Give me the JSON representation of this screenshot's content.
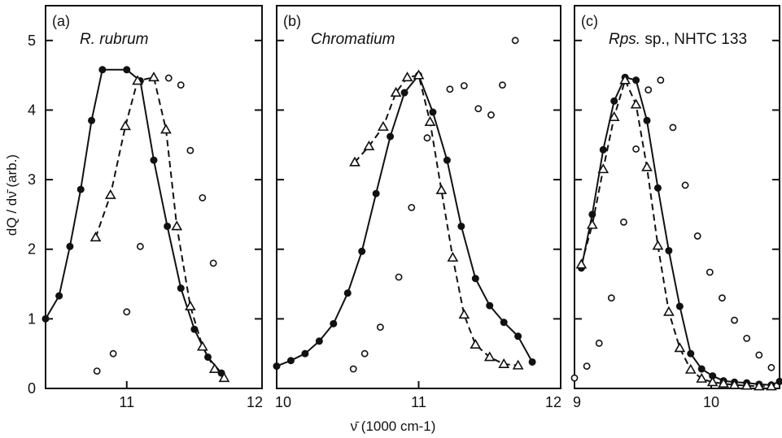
{
  "chart_data": {
    "type": "line",
    "ylabel": "dQ / dν̄  (arb.)",
    "xlabel": "ν̄ (1000 cm-1)",
    "ylim": [
      0,
      5.5
    ],
    "y_ticks": [
      "0",
      "1",
      "2",
      "3",
      "4",
      "5"
    ],
    "panels": [
      {
        "tag": "(a)",
        "name": "R. rubrum",
        "xlim": [
          10.4,
          12
        ],
        "x_ticks": [
          {
            "v": 11,
            "label": "11"
          },
          {
            "v": 12,
            "label": "12"
          }
        ],
        "series": [
          {
            "marker": "filled-circle",
            "line": "solid",
            "x": [
              10.4,
              10.5,
              10.58,
              10.66,
              10.74,
              10.82,
              11.0,
              11.1,
              11.2,
              11.3,
              11.4,
              11.5,
              11.6,
              11.7
            ],
            "y": [
              1.0,
              1.33,
              2.04,
              2.86,
              3.85,
              4.58,
              4.58,
              4.42,
              3.28,
              2.33,
              1.44,
              0.85,
              0.45,
              0.22
            ]
          },
          {
            "marker": "open-triangle",
            "line": "dashed",
            "x": [
              10.77,
              10.88,
              10.99,
              11.08,
              11.2,
              11.29,
              11.37,
              11.47,
              11.56,
              11.65,
              11.72
            ],
            "y": [
              2.17,
              2.78,
              3.77,
              4.42,
              4.47,
              3.72,
              2.33,
              1.18,
              0.6,
              0.28,
              0.15
            ]
          },
          {
            "marker": "open-circle",
            "line": "none",
            "x": [
              10.78,
              10.9,
              11.0,
              11.1,
              11.31,
              11.4,
              11.47,
              11.56,
              11.64
            ],
            "y": [
              0.25,
              0.5,
              1.1,
              2.04,
              4.46,
              4.36,
              3.42,
              2.74,
              1.8
            ]
          }
        ]
      },
      {
        "tag": "(b)",
        "name": "Chromatium",
        "xlim": [
          10,
          12
        ],
        "x_ticks": [
          {
            "v": 10,
            "label": "10"
          },
          {
            "v": 11,
            "label": "11"
          },
          {
            "v": 12,
            "label": "12"
          }
        ],
        "series": [
          {
            "marker": "filled-circle",
            "line": "solid",
            "x": [
              10.0,
              10.1,
              10.2,
              10.3,
              10.4,
              10.5,
              10.6,
              10.7,
              10.8,
              10.9,
              11.0,
              11.1,
              11.2,
              11.3,
              11.4,
              11.5,
              11.6,
              11.7,
              11.8
            ],
            "y": [
              0.32,
              0.4,
              0.5,
              0.68,
              0.93,
              1.37,
              1.97,
              2.8,
              3.62,
              4.25,
              4.5,
              3.97,
              3.28,
              2.33,
              1.58,
              1.19,
              0.95,
              0.75,
              0.38
            ]
          },
          {
            "marker": "open-triangle",
            "line": "dashed",
            "x": [
              10.55,
              10.65,
              10.75,
              10.84,
              10.92,
              11.0,
              11.08,
              11.16,
              11.24,
              11.32,
              11.4,
              11.5,
              11.6,
              11.7
            ],
            "y": [
              3.25,
              3.48,
              3.76,
              4.25,
              4.47,
              4.5,
              3.83,
              2.85,
              1.88,
              1.06,
              0.63,
              0.45,
              0.35,
              0.33
            ]
          },
          {
            "marker": "open-circle",
            "line": "none",
            "x": [
              10.54,
              10.62,
              10.73,
              10.86,
              10.95,
              11.06,
              11.22,
              11.32,
              11.42,
              11.51,
              11.59,
              11.68
            ],
            "y": [
              0.28,
              0.5,
              0.88,
              1.6,
              2.6,
              3.6,
              4.3,
              4.35,
              4.02,
              3.93,
              4.36,
              5.0
            ]
          }
        ]
      },
      {
        "tag": "(c)",
        "name": "Rps.",
        "name_suffix": " sp., NHTC 133",
        "xlim": [
          9,
          10.5
        ],
        "x_ticks": [
          {
            "v": 9,
            "label": "9"
          },
          {
            "v": 10,
            "label": "10"
          }
        ],
        "series": [
          {
            "marker": "filled-circle",
            "line": "solid",
            "x": [
              9.05,
              9.13,
              9.21,
              9.29,
              9.37,
              9.45,
              9.53,
              9.61,
              9.69,
              9.77,
              9.85,
              9.93,
              10.01,
              10.09,
              10.17,
              10.26,
              10.35,
              10.44,
              10.5
            ],
            "y": [
              1.73,
              2.5,
              3.43,
              4.13,
              4.47,
              4.43,
              3.85,
              2.88,
              1.98,
              1.18,
              0.5,
              0.28,
              0.18,
              0.11,
              0.09,
              0.08,
              0.06,
              0.05,
              0.1
            ]
          },
          {
            "marker": "open-triangle",
            "line": "dashed",
            "x": [
              9.05,
              9.13,
              9.21,
              9.29,
              9.37,
              9.45,
              9.53,
              9.61,
              9.69,
              9.77,
              9.85,
              9.93,
              10.01,
              10.09,
              10.17,
              10.26,
              10.35,
              10.44
            ],
            "y": [
              1.78,
              2.35,
              3.15,
              3.9,
              4.43,
              4.08,
              3.18,
              2.05,
              1.1,
              0.58,
              0.27,
              0.14,
              0.09,
              0.07,
              0.05,
              0.04,
              0.03,
              0.03
            ]
          },
          {
            "marker": "open-circle",
            "line": "none",
            "x": [
              9.0,
              9.09,
              9.18,
              9.27,
              9.36,
              9.45,
              9.54,
              9.63,
              9.72,
              9.81,
              9.9,
              9.99,
              10.08,
              10.17,
              10.26,
              10.35,
              10.44
            ],
            "y": [
              0.15,
              0.32,
              0.65,
              1.3,
              2.39,
              3.44,
              4.29,
              4.43,
              3.75,
              2.92,
              2.19,
              1.67,
              1.3,
              0.98,
              0.72,
              0.48,
              0.3
            ]
          }
        ]
      }
    ]
  }
}
